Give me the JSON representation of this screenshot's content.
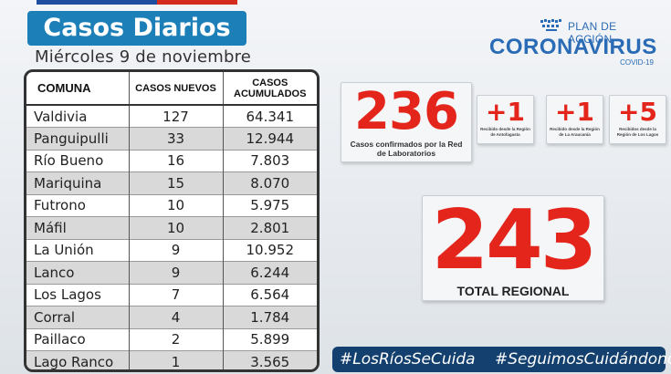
{
  "title": "Casos Diarios",
  "subtitle": "Miércoles 9  de noviembre",
  "table": {
    "headers": {
      "comuna": "COMUNA",
      "nuevos": "CASOS NUEVOS",
      "acumulados_line1": "CASOS",
      "acumulados_line2": "ACUMULADOS"
    },
    "rows": [
      {
        "comuna": "Valdivia",
        "nuevos": "127",
        "acumulados": "64.341"
      },
      {
        "comuna": "Panguipulli",
        "nuevos": "33",
        "acumulados": "12.944"
      },
      {
        "comuna": "Río Bueno",
        "nuevos": "16",
        "acumulados": "7.803"
      },
      {
        "comuna": "Mariquina",
        "nuevos": "15",
        "acumulados": "8.070"
      },
      {
        "comuna": "Futrono",
        "nuevos": "10",
        "acumulados": "5.975"
      },
      {
        "comuna": "Máfil",
        "nuevos": "10",
        "acumulados": "2.801"
      },
      {
        "comuna": "La Unión",
        "nuevos": "9",
        "acumulados": "10.952"
      },
      {
        "comuna": "Lanco",
        "nuevos": "9",
        "acumulados": "6.244"
      },
      {
        "comuna": "Los Lagos",
        "nuevos": "7",
        "acumulados": "6.564"
      },
      {
        "comuna": "Corral",
        "nuevos": "4",
        "acumulados": "1.784"
      },
      {
        "comuna": "Paillaco",
        "nuevos": "2",
        "acumulados": "5.899"
      },
      {
        "comuna": "Lago Ranco",
        "nuevos": "1",
        "acumulados": "3.565"
      }
    ]
  },
  "logo": {
    "plan": "PLAN DE ACCIÓN",
    "main": "CORONAVIRUS",
    "covid": "COVID-19"
  },
  "confirmed": {
    "value": "236",
    "description": "Casos confirmados por la Red de Laboratorios"
  },
  "imports": [
    {
      "value": "+1",
      "description": "Recibido desde la Región de Antofagasta"
    },
    {
      "value": "+1",
      "description": "Recibido desde la Región de La Araucanía"
    },
    {
      "value": "+5",
      "description": "Recibidos desde la Región de Los Lagos"
    }
  ],
  "total": {
    "value": "243",
    "label": "TOTAL REGIONAL"
  },
  "hashtags": [
    "#LosRíosSeCuida",
    "#SeguimosCuidándonos"
  ],
  "colors": {
    "accent_red": "#e3251b",
    "title_blue": "#1d7fb8",
    "logo_blue": "#2a6bb5",
    "hashtag_bg": "#13406e"
  }
}
